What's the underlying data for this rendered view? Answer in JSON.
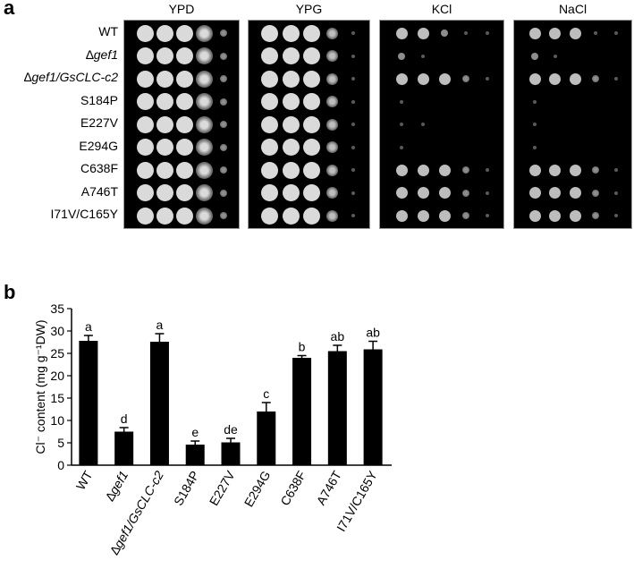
{
  "panel_a": {
    "label": "a",
    "strains": [
      "WT",
      "∆gef1",
      "∆gef1/GsCLC-c2",
      "S184P",
      "E227V",
      "E294G",
      "C638F",
      "A746T",
      "I71V/C165Y"
    ],
    "conditions": [
      "YPD",
      "YPG",
      "KCl",
      "NaCl"
    ],
    "growth": {
      "YPD": [
        [
          4,
          4,
          4,
          4,
          2
        ],
        [
          4,
          4,
          4,
          4,
          2
        ],
        [
          4,
          4,
          4,
          4,
          2
        ],
        [
          4,
          4,
          4,
          4,
          2
        ],
        [
          4,
          4,
          4,
          4,
          2
        ],
        [
          4,
          4,
          4,
          4,
          2
        ],
        [
          4,
          4,
          4,
          4,
          2
        ],
        [
          4,
          4,
          4,
          4,
          2
        ],
        [
          4,
          4,
          4,
          4,
          2
        ]
      ],
      "YPG": [
        [
          4,
          4,
          4,
          3,
          1
        ],
        [
          4,
          4,
          4,
          3,
          1
        ],
        [
          4,
          4,
          4,
          3,
          1
        ],
        [
          4,
          4,
          4,
          3,
          1
        ],
        [
          4,
          4,
          4,
          3,
          1
        ],
        [
          4,
          4,
          4,
          3,
          1
        ],
        [
          4,
          4,
          4,
          3,
          1
        ],
        [
          4,
          4,
          4,
          3,
          1
        ],
        [
          4,
          4,
          4,
          3,
          1
        ]
      ],
      "KCl": [
        [
          3,
          3,
          2,
          1,
          1
        ],
        [
          2,
          1,
          0,
          0,
          0
        ],
        [
          3,
          3,
          3,
          2,
          1
        ],
        [
          1,
          0,
          0,
          0,
          0
        ],
        [
          1,
          1,
          0,
          0,
          0
        ],
        [
          1,
          0,
          0,
          0,
          0
        ],
        [
          3,
          3,
          3,
          2,
          1
        ],
        [
          3,
          3,
          3,
          2,
          1
        ],
        [
          3,
          3,
          3,
          2,
          1
        ]
      ],
      "NaCl": [
        [
          3,
          3,
          3,
          1,
          1
        ],
        [
          2,
          1,
          0,
          0,
          0
        ],
        [
          3,
          3,
          3,
          2,
          1
        ],
        [
          1,
          0,
          0,
          0,
          0
        ],
        [
          1,
          0,
          0,
          0,
          0
        ],
        [
          1,
          0,
          0,
          0,
          0
        ],
        [
          3,
          3,
          3,
          2,
          1
        ],
        [
          3,
          3,
          3,
          2,
          1
        ],
        [
          3,
          3,
          3,
          2,
          1
        ]
      ]
    }
  },
  "panel_b": {
    "label": "b",
    "chart_data": {
      "type": "bar",
      "categories": [
        "WT",
        "∆gef1",
        "∆gef1/GsCLC-c2",
        "S184P",
        "E227V",
        "E294G",
        "C638F",
        "A746T",
        "I71V/C165Y"
      ],
      "values": [
        27.8,
        7.5,
        27.6,
        4.6,
        5.1,
        12.0,
        24.0,
        25.5,
        25.9
      ],
      "errors": [
        1.2,
        0.9,
        1.8,
        0.8,
        0.9,
        2.0,
        0.5,
        1.3,
        1.8
      ],
      "significance": [
        "a",
        "d",
        "a",
        "e",
        "de",
        "c",
        "b",
        "ab",
        "ab"
      ],
      "ylabel": "Cl⁻ content (mg g⁻¹DW)",
      "ylim": [
        0,
        35
      ],
      "yticks": [
        0,
        5,
        10,
        15,
        20,
        25,
        30,
        35
      ],
      "bar_color": "#000000"
    }
  }
}
